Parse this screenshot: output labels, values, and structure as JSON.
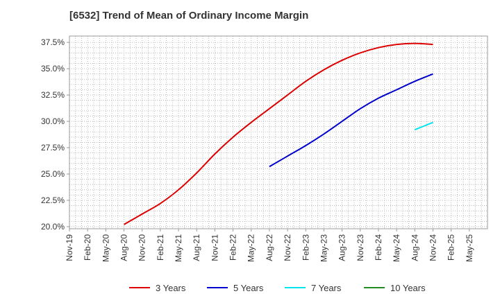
{
  "chart_data": {
    "type": "line",
    "title": "[6532]  Trend of Mean of Ordinary Income Margin",
    "xlabel": "",
    "ylabel": "",
    "x_ticks": [
      "Nov-19",
      "Feb-20",
      "May-20",
      "Aug-20",
      "Nov-20",
      "Feb-21",
      "May-21",
      "Aug-21",
      "Nov-21",
      "Feb-22",
      "May-22",
      "Aug-22",
      "Nov-22",
      "Feb-23",
      "May-23",
      "Aug-23",
      "Nov-23",
      "Feb-24",
      "May-24",
      "Aug-24",
      "Nov-24",
      "Feb-25",
      "May-25"
    ],
    "y_ticks": [
      "20.0%",
      "22.5%",
      "25.0%",
      "27.5%",
      "30.0%",
      "32.5%",
      "35.0%",
      "37.5%"
    ],
    "ylim": [
      19.8,
      38.1
    ],
    "grid": true,
    "legend_position": "bottom",
    "series": [
      {
        "name": "3 Years",
        "color": "#dd0000",
        "x": [
          "Aug-20",
          "Nov-20",
          "Feb-21",
          "May-21",
          "Aug-21",
          "Nov-21",
          "Feb-22",
          "May-22",
          "Aug-22",
          "Nov-22",
          "Feb-23",
          "May-23",
          "Aug-23",
          "Nov-23",
          "Feb-24",
          "May-24",
          "Aug-24",
          "Nov-24"
        ],
        "values": [
          20.2,
          21.2,
          22.2,
          23.5,
          25.1,
          26.9,
          28.5,
          29.9,
          31.2,
          32.5,
          33.8,
          34.9,
          35.8,
          36.5,
          37.0,
          37.3,
          37.4,
          37.3
        ]
      },
      {
        "name": "5 Years",
        "color": "#0000cc",
        "x": [
          "Aug-22",
          "Nov-22",
          "Feb-23",
          "May-23",
          "Aug-23",
          "Nov-23",
          "Feb-24",
          "May-24",
          "Aug-24",
          "Nov-24"
        ],
        "values": [
          25.7,
          26.7,
          27.7,
          28.8,
          30.0,
          31.2,
          32.2,
          33.0,
          33.8,
          34.5
        ]
      },
      {
        "name": "7 Years",
        "color": "#00e5ee",
        "x": [
          "Aug-24",
          "Nov-24"
        ],
        "values": [
          29.2,
          29.9
        ]
      },
      {
        "name": "10 Years",
        "color": "#228b22",
        "x": [],
        "values": []
      }
    ]
  }
}
